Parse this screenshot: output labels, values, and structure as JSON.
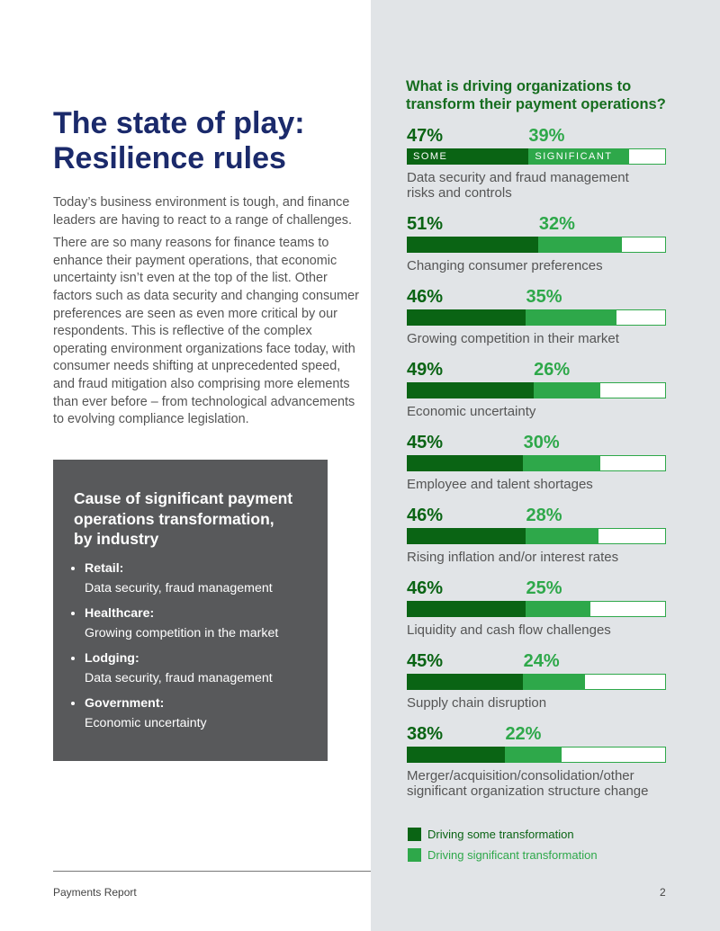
{
  "header": {
    "title": [
      "The state of play:",
      "Resilience rules"
    ]
  },
  "body": {
    "paragraphs": [
      "Today’s business environment is tough, and finance leaders are having to react to a range of challenges.",
      "There are so many reasons for finance teams to enhance their payment operations, that economic uncertainty isn’t even at the top of the list. Other factors such as data security and changing consumer preferences are seen as even more critical by our respondents. This is reflective of the complex operating environment organizations face today, with consumer needs shifting at unprecedented speed, and fraud mitigation also comprising more elements than ever before – from technological advancements to evolving compliance legislation."
    ]
  },
  "sidebar": {
    "title": [
      "Cause of significant payment",
      "operations transformation,",
      "by industry"
    ],
    "items": [
      {
        "label": "Retail:",
        "text": "Data security, fraud management"
      },
      {
        "label": "Healthcare:",
        "text": "Growing competition in the market"
      },
      {
        "label": "Lodging:",
        "text": "Data security, fraud management"
      },
      {
        "label": "Government:",
        "text": "Economic uncertainty"
      }
    ]
  },
  "chart_data": {
    "type": "stacked-bar",
    "title": "What is driving organizations to transform their payment operations?",
    "categories": [
      "Data security and fraud management risks and controls",
      "Changing consumer preferences",
      "Growing competition in their market",
      "Economic uncertainty",
      "Employee and talent shortages",
      "Rising inflation and/or interest rates",
      "Liquidity and cash flow challenges",
      "Supply chain disruption",
      "Merger/acquisition/consolidation/other significant organization structure change"
    ],
    "xlim": [
      0,
      100
    ],
    "series": [
      {
        "name": "Driving some transformation",
        "tag": "SOME",
        "color": "#0a6414",
        "values": [
          47,
          51,
          46,
          49,
          45,
          46,
          46,
          45,
          38
        ],
        "value_labels": [
          "47%",
          "51%",
          "46%",
          "49%",
          "45%",
          "46%",
          "46%",
          "45%",
          "38%"
        ]
      },
      {
        "name": "Driving significant transformation",
        "tag": "SIGNIFICANT",
        "color": "#2ea84a",
        "values": [
          39,
          32,
          35,
          26,
          30,
          28,
          25,
          24,
          22
        ],
        "value_labels": [
          "39%",
          "32%",
          "35%",
          "26%",
          "30%",
          "28%",
          "25%",
          "24%",
          "22%"
        ]
      }
    ]
  },
  "footer": {
    "label": "Payments Report",
    "page": "2"
  }
}
